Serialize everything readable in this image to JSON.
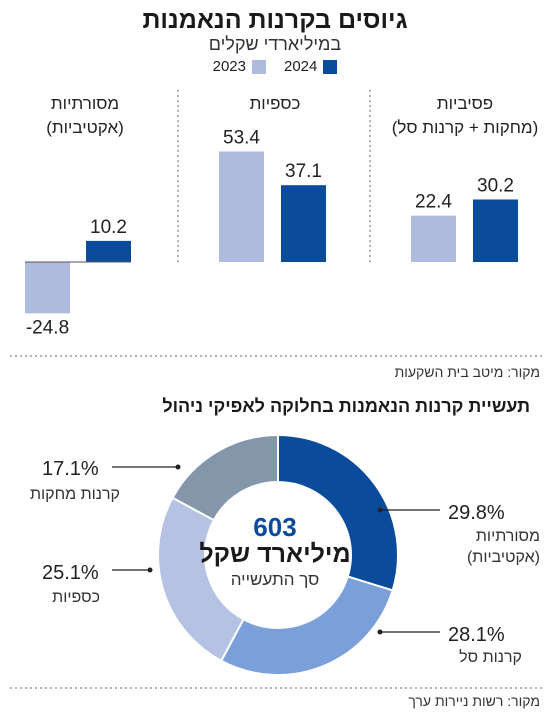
{
  "title": "גיוסים בקרנות הנאמנות",
  "subtitle": "במיליארדי שקלים",
  "legend": [
    {
      "label": "2024",
      "color": "#0a4b9c"
    },
    {
      "label": "2023",
      "color": "#aebbdf"
    }
  ],
  "source1": "מקור: מיטב בית השקעות",
  "source2": "מקור: רשות ניירות ערך",
  "pie_title": "תעשיית קרנות הנאמנות בחלוקה לאפיקי ניהול",
  "pie_center": {
    "value": "603",
    "unit": "מיליארד שקל",
    "caption": "סך התעשייה"
  },
  "chart_data": [
    {
      "type": "bar",
      "categories": [
        "פסיביות",
        "כספיות",
        "מסורתיות"
      ],
      "category_sublabels": [
        "(מחקות + קרנות סל)",
        "",
        "(אקטיביות)"
      ],
      "series": [
        {
          "name": "2023",
          "color": "#aebbdf",
          "values": [
            22.4,
            53.4,
            -24.8
          ]
        },
        {
          "name": "2024",
          "color": "#0a4b9c",
          "values": [
            30.2,
            37.1,
            10.2
          ]
        }
      ],
      "value_labels": {
        "2023": [
          "22.4",
          "53.4",
          "-24.8"
        ],
        "2024": [
          "30.2",
          "37.1",
          "10.2"
        ]
      },
      "ylim": [
        -30,
        60
      ]
    },
    {
      "type": "pie",
      "variant": "donut",
      "slices": [
        {
          "label": "מסורתיות",
          "sublabel": "(אקטיביות)",
          "percent_text": "29.8%",
          "value": 29.8,
          "color": "#0a4b9c"
        },
        {
          "label": "קרנות סל",
          "sublabel": "",
          "percent_text": "28.1%",
          "value": 28.1,
          "color": "#7a9fd9"
        },
        {
          "label": "כספיות",
          "sublabel": "",
          "percent_text": "25.1%",
          "value": 25.1,
          "color": "#b5c2e4"
        },
        {
          "label": "קרנות מחקות",
          "sublabel": "",
          "percent_text": "17.1%",
          "value": 17.1,
          "color": "#8496aa"
        }
      ]
    }
  ]
}
